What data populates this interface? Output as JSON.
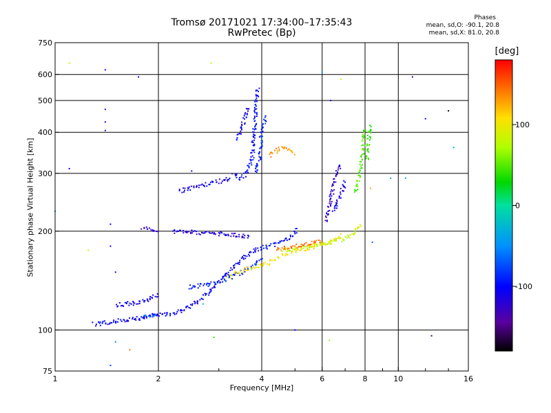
{
  "header": {
    "title": "Tromsø 20171021 17:34:00–17:35:43",
    "subtitle": "RwPretec (Bp)"
  },
  "phases_box": {
    "heading": "Phases",
    "line1": "mean, sd,O: -90.1, 20.8",
    "line2": "mean, sd,X: 81.0, 20.8"
  },
  "colorbar": {
    "unit_label": "[deg]",
    "range": [
      -180,
      180
    ],
    "ticks": [
      "100",
      "0",
      "-100"
    ]
  },
  "chart_data": {
    "type": "scatter",
    "xlabel": "Frequency [MHz]",
    "ylabel": "Stationary phase Virtual Height [km]",
    "x_scale": "log",
    "y_scale": "log",
    "xlim": [
      1,
      16
    ],
    "ylim": [
      75,
      750
    ],
    "x_ticks": [
      "1",
      "2",
      "4",
      "6",
      "8",
      "10",
      "16"
    ],
    "y_ticks": [
      "75",
      "100",
      "200",
      "300",
      "400",
      "500",
      "600",
      "750"
    ],
    "grid": true,
    "color_by": "phase_deg",
    "traces": [
      {
        "x": [
          1.3,
          1.4,
          1.55,
          1.7,
          1.85,
          2.0,
          2.2,
          2.4,
          2.6,
          2.8,
          3.0,
          3.2,
          3.4,
          3.6,
          3.8,
          4.0
        ],
        "y": [
          104,
          105,
          107,
          108,
          110,
          111,
          112,
          116,
          122,
          130,
          140,
          150,
          160,
          168,
          174,
          178
        ],
        "phase": -105
      },
      {
        "x": [
          1.5,
          1.6,
          1.7,
          1.8,
          1.9,
          2.0
        ],
        "y": [
          119,
          120,
          121,
          122,
          125,
          128
        ],
        "phase": -105
      },
      {
        "x": [
          1.8,
          1.9,
          2.0
        ],
        "y": [
          110,
          111,
          112
        ],
        "phase": -75
      },
      {
        "x": [
          2.45,
          2.6,
          2.8,
          3.0,
          3.2,
          3.4,
          3.6,
          3.8,
          4.0
        ],
        "y": [
          135,
          136,
          138,
          140,
          144,
          148,
          152,
          158,
          165
        ],
        "phase": -90
      },
      {
        "x": [
          4.0,
          4.4,
          4.8,
          5.0,
          5.1
        ],
        "y": [
          178,
          182,
          190,
          198,
          205
        ],
        "phase": -95
      },
      {
        "x": [
          2.2,
          2.5,
          2.8,
          3.1,
          3.4,
          3.7
        ],
        "y": [
          200,
          199,
          197,
          196,
          194,
          192
        ],
        "phase": -115
      },
      {
        "x": [
          1.8,
          1.9,
          2.0
        ],
        "y": [
          205,
          203,
          200
        ],
        "phase": -120
      },
      {
        "x": [
          2.3,
          2.7,
          2.95,
          3.1,
          3.25
        ],
        "y": [
          265,
          275,
          283,
          285,
          290
        ],
        "phase": -110
      },
      {
        "x": [
          3.3,
          3.45,
          3.6,
          3.75,
          3.8,
          3.85,
          3.9
        ],
        "y": [
          300,
          290,
          300,
          330,
          400,
          480,
          550
        ],
        "phase": -100
      },
      {
        "x": [
          3.4,
          3.55,
          3.65
        ],
        "y": [
          380,
          430,
          480
        ],
        "phase": -105
      },
      {
        "x": [
          3.85,
          3.95,
          4.0,
          4.1
        ],
        "y": [
          300,
          340,
          400,
          450
        ],
        "phase": -90
      },
      {
        "x": [
          3.2,
          3.4,
          3.6,
          3.9,
          4.2,
          4.5,
          4.8,
          5.2,
          5.6,
          6.0,
          6.4,
          6.8
        ],
        "y": [
          145,
          150,
          153,
          156,
          160,
          166,
          172,
          176,
          178,
          182,
          186,
          195
        ],
        "phase": 95
      },
      {
        "x": [
          4.6,
          5.0,
          5.5,
          6.0,
          6.5,
          7.0,
          7.5,
          7.8
        ],
        "y": [
          175,
          177,
          180,
          183,
          186,
          190,
          198,
          210
        ],
        "phase": 78
      },
      {
        "x": [
          7.5,
          7.6,
          7.7,
          7.8,
          7.9,
          8.0
        ],
        "y": [
          260,
          275,
          295,
          320,
          360,
          410
        ],
        "phase": 45
      },
      {
        "x": [
          8.1,
          8.2,
          8.3
        ],
        "y": [
          330,
          380,
          420
        ],
        "phase": 35
      },
      {
        "x": [
          4.4,
          4.7,
          5.0,
          5.4,
          5.7,
          6.0
        ],
        "y": [
          175,
          178,
          180,
          182,
          185,
          188
        ],
        "phase": 140
      },
      {
        "x": [
          6.15,
          6.3,
          6.45,
          6.6,
          6.8
        ],
        "y": [
          215,
          240,
          270,
          300,
          320
        ],
        "phase": -120
      },
      {
        "x": [
          6.5,
          6.7,
          6.9,
          7.0
        ],
        "y": [
          230,
          250,
          270,
          285
        ],
        "phase": -110
      },
      {
        "x": [
          4.2,
          4.6,
          5.0
        ],
        "y": [
          340,
          360,
          345
        ],
        "phase": 125
      }
    ],
    "scatter_points": [
      {
        "x": 1.1,
        "y": 650,
        "phase": 75
      },
      {
        "x": 1.1,
        "y": 310,
        "phase": -105
      },
      {
        "x": 1.4,
        "y": 620,
        "phase": -110
      },
      {
        "x": 1.4,
        "y": 470,
        "phase": -120
      },
      {
        "x": 1.4,
        "y": 430,
        "phase": -110
      },
      {
        "x": 1.4,
        "y": 405,
        "phase": -120
      },
      {
        "x": 1.75,
        "y": 590,
        "phase": -110
      },
      {
        "x": 2.85,
        "y": 650,
        "phase": 70
      },
      {
        "x": 1.45,
        "y": 210,
        "phase": -105
      },
      {
        "x": 1.45,
        "y": 180,
        "phase": -105
      },
      {
        "x": 1.25,
        "y": 175,
        "phase": 75
      },
      {
        "x": 1.5,
        "y": 150,
        "phase": -100
      },
      {
        "x": 1.0,
        "y": 230,
        "phase": -30
      },
      {
        "x": 1.5,
        "y": 92,
        "phase": -60
      },
      {
        "x": 1.45,
        "y": 78,
        "phase": -80
      },
      {
        "x": 1.65,
        "y": 87,
        "phase": 140
      },
      {
        "x": 2.9,
        "y": 95,
        "phase": 40
      },
      {
        "x": 5.0,
        "y": 100,
        "phase": -100
      },
      {
        "x": 6.3,
        "y": 93,
        "phase": 60
      },
      {
        "x": 10.5,
        "y": 290,
        "phase": -40
      },
      {
        "x": 11.0,
        "y": 590,
        "phase": -150
      },
      {
        "x": 12.0,
        "y": 440,
        "phase": -100
      },
      {
        "x": 12.5,
        "y": 96,
        "phase": -150
      },
      {
        "x": 14.0,
        "y": 465,
        "phase": -175
      },
      {
        "x": 14.5,
        "y": 360,
        "phase": -20
      },
      {
        "x": 6.0,
        "y": 610,
        "phase": -50
      },
      {
        "x": 6.35,
        "y": 500,
        "phase": -105
      },
      {
        "x": 6.8,
        "y": 580,
        "phase": 70
      },
      {
        "x": 8.3,
        "y": 270,
        "phase": 120
      },
      {
        "x": 8.4,
        "y": 185,
        "phase": -70
      },
      {
        "x": 9.5,
        "y": 290,
        "phase": -40
      },
      {
        "x": 2.5,
        "y": 305,
        "phase": -100
      },
      {
        "x": 2.7,
        "y": 120,
        "phase": -20
      }
    ]
  }
}
